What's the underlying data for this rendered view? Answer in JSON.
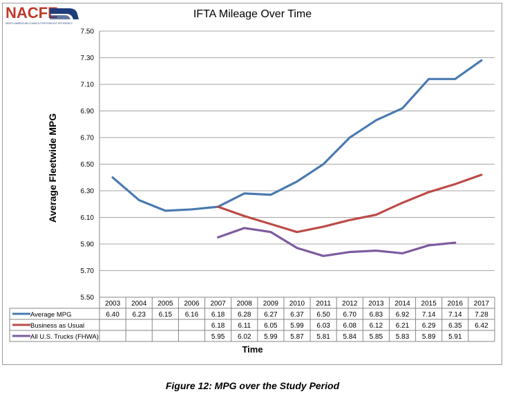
{
  "logo": {
    "text": "NACFE",
    "subtitle": "NORTH AMERICAN COUNCIL FOR FREIGHT EFFICIENCY"
  },
  "caption": "Figure 12: MPG over the Study Period",
  "colors": {
    "average": "#4a7ab0",
    "business": "#bc4b47",
    "fhwa": "#7d5a9e",
    "grid": "#a6a6a6"
  },
  "chart_data": {
    "type": "line",
    "title": "IFTA Mileage Over Time",
    "xlabel": "Time",
    "ylabel": "Average Fleetwide MPG",
    "ylim": [
      5.5,
      7.5
    ],
    "y_ticks": [
      "7.50",
      "7.30",
      "7.10",
      "6.90",
      "6.70",
      "6.50",
      "6.30",
      "6.10",
      "5.90",
      "5.70",
      "5.50"
    ],
    "grid": true,
    "legend_placement": "data table below plot",
    "categories": [
      "2003",
      "2004",
      "2005",
      "2006",
      "2007",
      "2008",
      "2009",
      "2010",
      "2011",
      "2012",
      "2013",
      "2014",
      "2015",
      "2016",
      "2017"
    ],
    "series": [
      {
        "name": "Average MPG",
        "values": [
          6.4,
          6.23,
          6.15,
          6.16,
          6.18,
          6.28,
          6.27,
          6.37,
          6.5,
          6.7,
          6.83,
          6.92,
          7.14,
          7.14,
          7.28
        ],
        "labels": [
          "6.40",
          "6.23",
          "6.15",
          "6.16",
          "6.18",
          "6.28",
          "6.27",
          "6.37",
          "6.50",
          "6.70",
          "6.83",
          "6.92",
          "7.14",
          "7.14",
          "7.28"
        ]
      },
      {
        "name": "Business as Usual",
        "values": [
          null,
          null,
          null,
          null,
          6.18,
          6.11,
          6.05,
          5.99,
          6.03,
          6.08,
          6.12,
          6.21,
          6.29,
          6.35,
          6.42
        ],
        "labels": [
          "",
          "",
          "",
          "",
          "6.18",
          "6.11",
          "6.05",
          "5.99",
          "6.03",
          "6.08",
          "6.12",
          "6.21",
          "6.29",
          "6.35",
          "6.42"
        ]
      },
      {
        "name": "All U.S. Trucks (FHWA)",
        "values": [
          null,
          null,
          null,
          null,
          5.95,
          6.02,
          5.99,
          5.87,
          5.81,
          5.84,
          5.85,
          5.83,
          5.89,
          5.91,
          null
        ],
        "labels": [
          "",
          "",
          "",
          "",
          "5.95",
          "6.02",
          "5.99",
          "5.87",
          "5.81",
          "5.84",
          "5.85",
          "5.83",
          "5.89",
          "5.91",
          ""
        ]
      }
    ]
  }
}
